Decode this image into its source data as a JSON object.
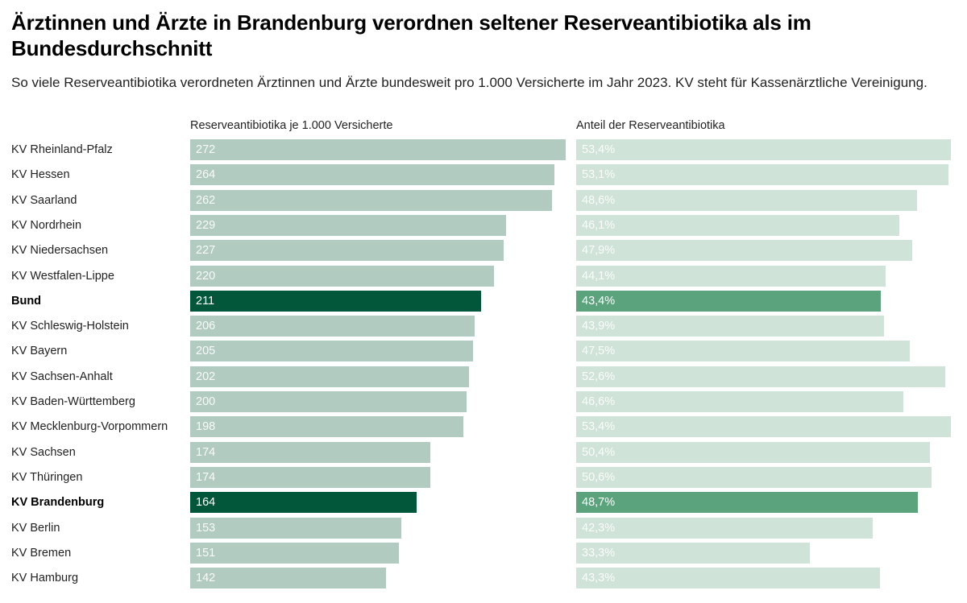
{
  "header": {
    "title": "Ärztinnen und Ärzte in Brandenburg verordnen seltener Reserveantibiotika als im Bundesdurchschnitt",
    "subtitle": "So viele Reserveantibiotika verordneten Ärztinnen und Ärzte bundesweit pro 1.000 Versicherte im Jahr 2023. KV steht für Kassenärztliche Vereinigung."
  },
  "colors": {
    "left_normal": "#b2cbc1",
    "left_highlight": "#02573a",
    "right_normal": "#cfe3d8",
    "right_highlight": "#5ba37c"
  },
  "chart_data": {
    "type": "bar",
    "orientation": "horizontal",
    "title": "Ärztinnen und Ärzte in Brandenburg verordnen seltener Reserveantibiotika als im Bundesdurchschnitt",
    "subtitle": "So viele Reserveantibiotika verordneten Ärztinnen und Ärzte bundesweit pro 1.000 Versicherte im Jahr 2023. KV steht für Kassenärztliche Vereinigung.",
    "categories": [
      "KV Rheinland-Pfalz",
      "KV Hessen",
      "KV Saarland",
      "KV Nordrhein",
      "KV Niedersachsen",
      "KV Westfalen-Lippe",
      "Bund",
      "KV Schleswig-Holstein",
      "KV Bayern",
      "KV Sachsen-Anhalt",
      "KV Baden-Württemberg",
      "KV Mecklenburg-Vorpommern",
      "KV Sachsen",
      "KV Thüringen",
      "KV Brandenburg",
      "KV Berlin",
      "KV Bremen",
      "KV Hamburg"
    ],
    "highlighted": [
      "Bund",
      "KV Brandenburg"
    ],
    "series": [
      {
        "name": "Reserveantibiotika je 1.000 Versicherte",
        "values": [
          272,
          264,
          262,
          229,
          227,
          220,
          211,
          206,
          205,
          202,
          200,
          198,
          174,
          174,
          164,
          153,
          151,
          142
        ],
        "labels": [
          "272",
          "264",
          "262",
          "229",
          "227",
          "220",
          "211",
          "206",
          "205",
          "202",
          "200",
          "198",
          "174",
          "174",
          "164",
          "153",
          "151",
          "142"
        ],
        "xlim": [
          0,
          272
        ]
      },
      {
        "name": "Anteil der Reserveantibiotika",
        "unit": "%",
        "values": [
          53.4,
          53.1,
          48.6,
          46.1,
          47.9,
          44.1,
          43.4,
          43.9,
          47.5,
          52.6,
          46.6,
          53.4,
          50.4,
          50.6,
          48.7,
          42.3,
          33.3,
          43.3
        ],
        "labels": [
          "53,4%",
          "53,1%",
          "48,6%",
          "46,1%",
          "47,9%",
          "44,1%",
          "43,4%",
          "43,9%",
          "47,5%",
          "52,6%",
          "46,6%",
          "53,4%",
          "50,4%",
          "50,6%",
          "48,7%",
          "42,3%",
          "33,3%",
          "43,3%"
        ],
        "xlim": [
          0,
          53.4
        ]
      }
    ],
    "xlabel": "",
    "ylabel": "",
    "grid": false,
    "legend": "none"
  }
}
